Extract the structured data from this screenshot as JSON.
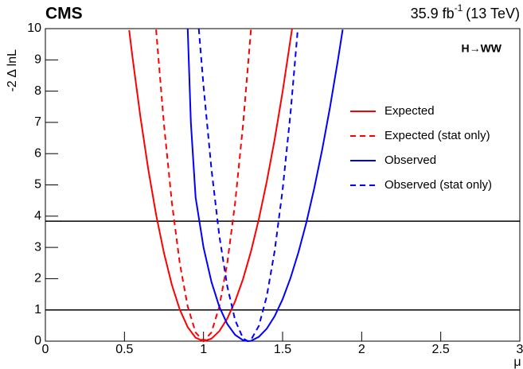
{
  "chart_data": {
    "type": "line",
    "experiment": "CMS",
    "lumi": "35.9 fb",
    "lumi_sup": "-1",
    "energy": "(13 TeV)",
    "annotation": "H→WW",
    "xlabel": "μ",
    "ylabel": "-2 Δ lnL",
    "xlim": [
      0,
      3
    ],
    "ylim": [
      0,
      10
    ],
    "xticks": [
      0,
      0.5,
      1,
      1.5,
      2,
      2.5,
      3
    ],
    "yticks": [
      0,
      1,
      2,
      3,
      4,
      5,
      6,
      7,
      8,
      9,
      10
    ],
    "hlines": [
      1,
      3.84
    ],
    "series": [
      {
        "name": "Expected",
        "color": "#ff0000",
        "dash": false,
        "x": [
          0.53,
          0.55,
          0.6,
          0.65,
          0.7,
          0.75,
          0.8,
          0.85,
          0.9,
          0.95,
          1.0,
          1.05,
          1.1,
          1.15,
          1.2,
          1.25,
          1.3,
          1.35,
          1.4,
          1.45,
          1.5,
          1.55,
          1.56
        ],
        "values": [
          9.95,
          9.12,
          7.21,
          5.52,
          4.05,
          2.82,
          1.8,
          1.01,
          0.45,
          0.11,
          0,
          0.08,
          0.32,
          0.72,
          1.28,
          1.99,
          2.87,
          3.91,
          5.11,
          6.46,
          7.98,
          9.66,
          10.0
        ]
      },
      {
        "name": "Expected (stat only)",
        "color": "#ff0000",
        "dash": true,
        "x": [
          0.7,
          0.75,
          0.8,
          0.85,
          0.9,
          0.95,
          1.0,
          1.05,
          1.1,
          1.15,
          1.2,
          1.25,
          1.3
        ],
        "values": [
          9.97,
          6.93,
          4.43,
          2.49,
          1.11,
          0.28,
          0,
          0.28,
          1.11,
          2.49,
          4.43,
          6.93,
          9.97
        ]
      },
      {
        "name": "Observed",
        "color": "#0000ff",
        "dash": false,
        "x": [
          0.9,
          0.92,
          0.95,
          1.0,
          1.05,
          1.1,
          1.15,
          1.2,
          1.25,
          1.28,
          1.3,
          1.35,
          1.4,
          1.45,
          1.5,
          1.55,
          1.6,
          1.65,
          1.7,
          1.75,
          1.8,
          1.85,
          1.88
        ],
        "values": [
          10.0,
          7.0,
          4.6,
          3.0,
          1.9,
          1.1,
          0.55,
          0.2,
          0.03,
          0,
          0.01,
          0.14,
          0.4,
          0.8,
          1.34,
          2.02,
          2.84,
          3.79,
          4.89,
          6.12,
          7.49,
          9.0,
          9.97
        ]
      },
      {
        "name": "Observed (stat only)",
        "color": "#0000ff",
        "dash": true,
        "x": [
          0.97,
          1.0,
          1.05,
          1.1,
          1.15,
          1.2,
          1.25,
          1.28,
          1.3,
          1.35,
          1.4,
          1.45,
          1.5,
          1.55,
          1.595
        ],
        "values": [
          10.0,
          8.16,
          5.51,
          3.37,
          1.76,
          0.67,
          0.09,
          0,
          0.04,
          0.49,
          1.44,
          2.89,
          4.84,
          7.29,
          9.92
        ]
      }
    ]
  }
}
